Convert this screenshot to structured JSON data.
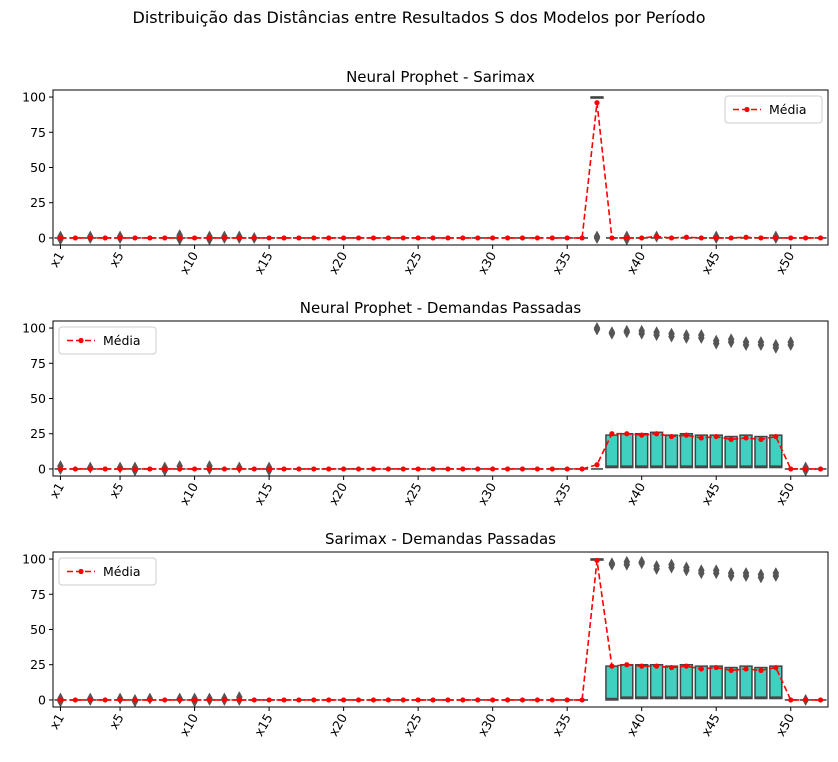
{
  "figure_title": "Distribuição das Distâncias entre Resultados S dos Modelos por Período",
  "colors": {
    "box_fill": "#40d0c0",
    "box_edge": "#444444",
    "mean_line": "#ff0000",
    "outlier": "#555555"
  },
  "chart_data": [
    {
      "type": "box",
      "title": "Neural Prophet - Sarimax",
      "ylim": [
        -5,
        105
      ],
      "yticks": [
        0,
        25,
        50,
        75,
        100
      ],
      "xtick_labels": [
        "x1",
        "x5",
        "x10",
        "x15",
        "x20",
        "x25",
        "x30",
        "x35",
        "x40",
        "x45",
        "x50"
      ],
      "xtick_positions": [
        1,
        5,
        10,
        15,
        20,
        25,
        30,
        35,
        40,
        45,
        50
      ],
      "legend": {
        "label": "Média",
        "placement": "upper right"
      },
      "boxes": [
        {
          "x": 37,
          "q1": 100,
          "q3": 100,
          "median": 100
        }
      ],
      "outliers": [
        {
          "x": 1,
          "y": [
            1,
            0,
            -1
          ]
        },
        {
          "x": 3,
          "y": [
            1,
            0
          ]
        },
        {
          "x": 5,
          "y": [
            1,
            0
          ]
        },
        {
          "x": 9,
          "y": [
            2,
            1,
            -1
          ]
        },
        {
          "x": 11,
          "y": [
            1,
            0,
            -1
          ]
        },
        {
          "x": 12,
          "y": [
            1,
            0
          ]
        },
        {
          "x": 13,
          "y": [
            1,
            0
          ]
        },
        {
          "x": 14,
          "y": [
            0
          ]
        },
        {
          "x": 37,
          "y": [
            1,
            0
          ]
        },
        {
          "x": 39,
          "y": [
            1,
            0,
            -1
          ]
        },
        {
          "x": 41,
          "y": [
            1
          ]
        },
        {
          "x": 45,
          "y": [
            1,
            0
          ]
        },
        {
          "x": 49,
          "y": [
            1,
            0
          ]
        }
      ],
      "mean": [
        0,
        0,
        0,
        0,
        0,
        0,
        0,
        0,
        0,
        0,
        0,
        0,
        0,
        0,
        0,
        0,
        0,
        0,
        0,
        0,
        0,
        0,
        0,
        0,
        0,
        0,
        0,
        0,
        0,
        0,
        0,
        0,
        0,
        0,
        0,
        0,
        96,
        0,
        0,
        0,
        1,
        0,
        0.5,
        0,
        0,
        0,
        0.5,
        0,
        0,
        0,
        0,
        0
      ]
    },
    {
      "type": "box",
      "title": "Neural Prophet - Demandas Passadas",
      "ylim": [
        -5,
        105
      ],
      "yticks": [
        0,
        25,
        50,
        75,
        100
      ],
      "xtick_labels": [
        "x1",
        "x5",
        "x10",
        "x15",
        "x20",
        "x25",
        "x30",
        "x35",
        "x40",
        "x45",
        "x50"
      ],
      "xtick_positions": [
        1,
        5,
        10,
        15,
        20,
        25,
        30,
        35,
        40,
        45,
        50
      ],
      "legend": {
        "label": "Média",
        "placement": "upper left"
      },
      "boxes": [
        {
          "x": 38,
          "q1": 1,
          "q3": 24,
          "median": 2
        },
        {
          "x": 39,
          "q1": 1,
          "q3": 25,
          "median": 2
        },
        {
          "x": 40,
          "q1": 1,
          "q3": 25,
          "median": 2
        },
        {
          "x": 41,
          "q1": 1,
          "q3": 26,
          "median": 2
        },
        {
          "x": 42,
          "q1": 1,
          "q3": 24,
          "median": 2
        },
        {
          "x": 43,
          "q1": 1,
          "q3": 25,
          "median": 2
        },
        {
          "x": 44,
          "q1": 1,
          "q3": 24,
          "median": 2
        },
        {
          "x": 45,
          "q1": 1,
          "q3": 24,
          "median": 2
        },
        {
          "x": 46,
          "q1": 1,
          "q3": 23,
          "median": 2
        },
        {
          "x": 47,
          "q1": 1,
          "q3": 24,
          "median": 2
        },
        {
          "x": 48,
          "q1": 1,
          "q3": 23,
          "median": 2
        },
        {
          "x": 49,
          "q1": 1,
          "q3": 24,
          "median": 2
        }
      ],
      "outliers": [
        {
          "x": 1,
          "y": [
            2,
            0
          ]
        },
        {
          "x": 3,
          "y": [
            1
          ]
        },
        {
          "x": 5,
          "y": [
            1
          ]
        },
        {
          "x": 6,
          "y": [
            1,
            -1
          ]
        },
        {
          "x": 8,
          "y": [
            1,
            -1
          ]
        },
        {
          "x": 9,
          "y": [
            2
          ]
        },
        {
          "x": 11,
          "y": [
            2,
            0
          ]
        },
        {
          "x": 13,
          "y": [
            1
          ]
        },
        {
          "x": 15,
          "y": [
            1,
            -1
          ]
        },
        {
          "x": 51,
          "y": [
            1,
            -1
          ]
        },
        {
          "x": 37,
          "y": [
            100,
            99
          ]
        },
        {
          "x": 38,
          "y": [
            97,
            96
          ]
        },
        {
          "x": 39,
          "y": [
            98,
            97
          ]
        },
        {
          "x": 40,
          "y": [
            98,
            96
          ]
        },
        {
          "x": 41,
          "y": [
            97,
            95
          ]
        },
        {
          "x": 42,
          "y": [
            96,
            94
          ]
        },
        {
          "x": 43,
          "y": [
            95,
            93
          ]
        },
        {
          "x": 44,
          "y": [
            95,
            93
          ]
        },
        {
          "x": 45,
          "y": [
            91,
            89
          ]
        },
        {
          "x": 46,
          "y": [
            92,
            90
          ]
        },
        {
          "x": 47,
          "y": [
            90,
            88
          ]
        },
        {
          "x": 48,
          "y": [
            90,
            88
          ]
        },
        {
          "x": 49,
          "y": [
            88,
            86
          ]
        },
        {
          "x": 50,
          "y": [
            90,
            88
          ]
        }
      ],
      "mean": [
        0,
        0,
        0,
        0,
        0,
        0,
        0,
        0,
        0,
        0,
        0,
        0,
        0,
        0,
        0,
        0,
        0,
        0,
        0,
        0,
        0,
        0,
        0,
        0,
        0,
        0,
        0,
        0,
        0,
        0,
        0,
        0,
        0,
        0,
        0,
        0,
        3,
        25,
        25,
        24,
        25,
        23,
        24,
        22,
        23,
        21,
        22,
        21,
        23,
        0,
        0,
        0
      ]
    },
    {
      "type": "box",
      "title": "Sarimax - Demandas Passadas",
      "ylim": [
        -5,
        105
      ],
      "yticks": [
        0,
        25,
        50,
        75,
        100
      ],
      "xtick_labels": [
        "x1",
        "x5",
        "x10",
        "x15",
        "x20",
        "x25",
        "x30",
        "x35",
        "x40",
        "x45",
        "x50"
      ],
      "xtick_positions": [
        1,
        5,
        10,
        15,
        20,
        25,
        30,
        35,
        40,
        45,
        50
      ],
      "legend": {
        "label": "Média",
        "placement": "upper left"
      },
      "boxes": [
        {
          "x": 37,
          "q1": 100,
          "q3": 100,
          "median": 100
        },
        {
          "x": 38,
          "q1": 0,
          "q3": 24,
          "median": 1
        },
        {
          "x": 39,
          "q1": 1,
          "q3": 25,
          "median": 2
        },
        {
          "x": 40,
          "q1": 1,
          "q3": 25,
          "median": 2
        },
        {
          "x": 41,
          "q1": 1,
          "q3": 25,
          "median": 2
        },
        {
          "x": 42,
          "q1": 1,
          "q3": 24,
          "median": 2
        },
        {
          "x": 43,
          "q1": 1,
          "q3": 25,
          "median": 2
        },
        {
          "x": 44,
          "q1": 1,
          "q3": 24,
          "median": 2
        },
        {
          "x": 45,
          "q1": 1,
          "q3": 24,
          "median": 2
        },
        {
          "x": 46,
          "q1": 1,
          "q3": 23,
          "median": 2
        },
        {
          "x": 47,
          "q1": 1,
          "q3": 24,
          "median": 2
        },
        {
          "x": 48,
          "q1": 1,
          "q3": 23,
          "median": 2
        },
        {
          "x": 49,
          "q1": 1,
          "q3": 24,
          "median": 2
        }
      ],
      "outliers": [
        {
          "x": 1,
          "y": [
            1,
            0,
            -1
          ]
        },
        {
          "x": 3,
          "y": [
            1,
            0
          ]
        },
        {
          "x": 5,
          "y": [
            1
          ]
        },
        {
          "x": 6,
          "y": [
            0,
            -1
          ]
        },
        {
          "x": 7,
          "y": [
            1
          ]
        },
        {
          "x": 9,
          "y": [
            1
          ]
        },
        {
          "x": 10,
          "y": [
            1,
            -1
          ]
        },
        {
          "x": 11,
          "y": [
            1,
            0
          ]
        },
        {
          "x": 12,
          "y": [
            1,
            0
          ]
        },
        {
          "x": 13,
          "y": [
            2,
            0
          ]
        },
        {
          "x": 51,
          "y": [
            0
          ]
        },
        {
          "x": 38,
          "y": [
            97,
            96
          ]
        },
        {
          "x": 39,
          "y": [
            98,
            96
          ]
        },
        {
          "x": 40,
          "y": [
            98,
            97
          ]
        },
        {
          "x": 41,
          "y": [
            95,
            93
          ]
        },
        {
          "x": 42,
          "y": [
            96,
            94
          ]
        },
        {
          "x": 43,
          "y": [
            94,
            92
          ]
        },
        {
          "x": 44,
          "y": [
            92,
            90
          ]
        },
        {
          "x": 45,
          "y": [
            92,
            90
          ]
        },
        {
          "x": 46,
          "y": [
            90,
            88
          ]
        },
        {
          "x": 47,
          "y": [
            90,
            88
          ]
        },
        {
          "x": 48,
          "y": [
            89,
            87
          ]
        },
        {
          "x": 49,
          "y": [
            90,
            88
          ]
        }
      ],
      "mean": [
        0,
        0,
        0,
        0,
        0,
        0,
        0,
        0,
        0,
        0,
        0,
        0,
        0,
        0,
        0,
        0,
        0,
        0,
        0,
        0,
        0,
        0,
        0,
        0,
        0,
        0,
        0,
        0,
        0,
        0,
        0,
        0,
        0,
        0,
        0,
        0,
        99,
        24,
        25,
        24,
        24,
        23,
        24,
        22,
        23,
        21,
        22,
        21,
        23,
        0,
        0,
        0
      ]
    }
  ]
}
